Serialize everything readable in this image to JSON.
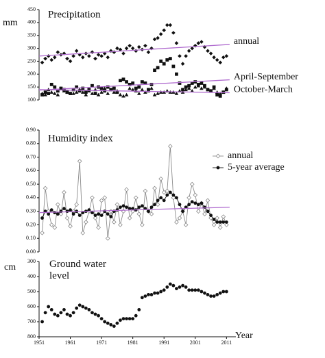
{
  "chart_data": [
    {
      "type": "scatter",
      "title": "Precipitation",
      "y_label": "mm",
      "xlim": [
        1951,
        2014
      ],
      "ylim": [
        100,
        450
      ],
      "yticks": [
        100,
        150,
        200,
        250,
        300,
        350,
        400,
        450
      ],
      "x": [
        1952,
        1953,
        1954,
        1955,
        1956,
        1957,
        1958,
        1959,
        1960,
        1961,
        1962,
        1963,
        1964,
        1965,
        1966,
        1967,
        1968,
        1969,
        1970,
        1971,
        1972,
        1973,
        1974,
        1975,
        1976,
        1977,
        1978,
        1979,
        1980,
        1981,
        1982,
        1983,
        1984,
        1985,
        1986,
        1987,
        1988,
        1989,
        1990,
        1991,
        1992,
        1993,
        1994,
        1995,
        1996,
        1997,
        1998,
        1999,
        2000,
        2001,
        2002,
        2003,
        2004,
        2005,
        2006,
        2007,
        2008,
        2009,
        2010,
        2011
      ],
      "series": [
        {
          "name": "annual",
          "color": "#111111",
          "marker": "diamond",
          "values": [
            245,
            260,
            270,
            255,
            265,
            285,
            275,
            280,
            260,
            250,
            270,
            290,
            275,
            265,
            280,
            270,
            285,
            260,
            275,
            270,
            280,
            265,
            290,
            285,
            300,
            295,
            280,
            300,
            310,
            300,
            290,
            305,
            295,
            310,
            285,
            300,
            335,
            340,
            355,
            370,
            390,
            390,
            360,
            320,
            270,
            240,
            270,
            290,
            300,
            310,
            320,
            325,
            305,
            290,
            280,
            265,
            255,
            245,
            265,
            270
          ],
          "trend": {
            "x": [
              1951,
              2012
            ],
            "values": [
              270,
              315
            ],
            "color": "#b06ccf"
          }
        },
        {
          "name": "April-September",
          "color": "#111111",
          "marker": "square",
          "values": [
            120,
            130,
            125,
            160,
            150,
            135,
            145,
            140,
            130,
            125,
            140,
            150,
            135,
            145,
            130,
            140,
            155,
            125,
            150,
            145,
            135,
            150,
            140,
            145,
            130,
            175,
            180,
            170,
            160,
            165,
            145,
            150,
            170,
            165,
            140,
            160,
            215,
            225,
            250,
            240,
            255,
            260,
            230,
            200,
            165,
            140,
            150,
            155,
            165,
            170,
            160,
            165,
            155,
            140,
            135,
            150,
            120,
            115,
            130,
            140
          ],
          "trend": {
            "x": [
              1951,
              2012
            ],
            "values": [
              138,
              178
            ],
            "color": "#b06ccf"
          }
        },
        {
          "name": "October-March",
          "color": "#111111",
          "marker": "triangle",
          "values": [
            125,
            120,
            140,
            130,
            125,
            120,
            145,
            135,
            130,
            125,
            125,
            130,
            140,
            130,
            120,
            135,
            125,
            140,
            120,
            130,
            145,
            125,
            140,
            130,
            135,
            120,
            115,
            120,
            145,
            140,
            135,
            125,
            140,
            130,
            135,
            145,
            120,
            125,
            130,
            130,
            135,
            130,
            130,
            125,
            135,
            130,
            140,
            145,
            135,
            150,
            155,
            145,
            150,
            140,
            135,
            145,
            130,
            125,
            130,
            145
          ],
          "trend": {
            "x": [
              1951,
              2012
            ],
            "values": [
              140,
              128
            ],
            "color": "#b06ccf"
          }
        }
      ]
    },
    {
      "type": "line",
      "title": "Humidity index",
      "legend": "upper right",
      "xlim": [
        1951,
        2014
      ],
      "ylim": [
        0,
        0.9
      ],
      "yticks": [
        {
          "value": 0,
          "label": "0.00"
        },
        {
          "value": 0.1,
          "label": "0.10"
        },
        {
          "value": 0.2,
          "label": "0.20"
        },
        {
          "value": 0.3,
          "label": "0.30"
        },
        {
          "value": 0.4,
          "label": "0.40"
        },
        {
          "value": 0.5,
          "label": "0.50"
        },
        {
          "value": 0.6,
          "label": "0.60"
        },
        {
          "value": 0.7,
          "label": "0.70"
        },
        {
          "value": 0.8,
          "label": "0.80"
        },
        {
          "value": 0.9,
          "label": "0.90"
        }
      ],
      "x": [
        1952,
        1953,
        1954,
        1955,
        1956,
        1957,
        1958,
        1959,
        1960,
        1961,
        1962,
        1963,
        1964,
        1965,
        1966,
        1967,
        1968,
        1969,
        1970,
        1971,
        1972,
        1973,
        1974,
        1975,
        1976,
        1977,
        1978,
        1979,
        1980,
        1981,
        1982,
        1983,
        1984,
        1985,
        1986,
        1987,
        1988,
        1989,
        1990,
        1991,
        1992,
        1993,
        1994,
        1995,
        1996,
        1997,
        1998,
        1999,
        2000,
        2001,
        2002,
        2003,
        2004,
        2005,
        2006,
        2007,
        2008,
        2009,
        2010,
        2011
      ],
      "series": [
        {
          "name": "annual",
          "color": "#8a8a8a",
          "marker": "open-diamond",
          "values": [
            0.14,
            0.47,
            0.3,
            0.2,
            0.18,
            0.35,
            0.28,
            0.44,
            0.25,
            0.19,
            0.3,
            0.35,
            0.67,
            0.14,
            0.22,
            0.3,
            0.4,
            0.25,
            0.18,
            0.38,
            0.4,
            0.1,
            0.3,
            0.22,
            0.35,
            0.2,
            0.3,
            0.46,
            0.25,
            0.3,
            0.4,
            0.28,
            0.2,
            0.45,
            0.3,
            0.28,
            0.47,
            0.35,
            0.54,
            0.44,
            0.45,
            0.78,
            0.4,
            0.22,
            0.25,
            0.3,
            0.2,
            0.4,
            0.5,
            0.42,
            0.3,
            0.36,
            0.28,
            0.38,
            0.25,
            0.2,
            0.25,
            0.18,
            0.26,
            0.2
          ]
        },
        {
          "name": "5-year average",
          "color": "#111111",
          "marker": "circle",
          "values": [
            0.25,
            0.3,
            0.28,
            0.31,
            0.29,
            0.28,
            0.3,
            0.32,
            0.3,
            0.31,
            0.28,
            0.3,
            0.27,
            0.29,
            0.3,
            0.31,
            0.29,
            0.27,
            0.28,
            0.27,
            0.3,
            0.28,
            0.26,
            0.3,
            0.31,
            0.33,
            0.34,
            0.33,
            0.32,
            0.32,
            0.31,
            0.33,
            0.34,
            0.32,
            0.3,
            0.33,
            0.35,
            0.38,
            0.4,
            0.38,
            0.42,
            0.44,
            0.42,
            0.4,
            0.35,
            0.3,
            0.33,
            0.35,
            0.37,
            0.36,
            0.35,
            0.36,
            0.33,
            0.3,
            0.27,
            0.24,
            0.22,
            0.22,
            0.22,
            0.22
          ]
        }
      ],
      "trend": {
        "x": [
          1951,
          2012
        ],
        "values": [
          0.29,
          0.33
        ],
        "color": "#b06ccf"
      }
    },
    {
      "type": "scatter",
      "title": "Ground water level",
      "y_label": "cm",
      "x_label": "Year",
      "xlim": [
        1951,
        2014
      ],
      "ylim": [
        800,
        300
      ],
      "yticks": [
        300,
        400,
        500,
        600,
        700,
        800
      ],
      "xticks": [
        1951,
        1961,
        1971,
        1981,
        1991,
        2001,
        2011
      ],
      "x": [
        1952,
        1953,
        1954,
        1955,
        1956,
        1957,
        1958,
        1959,
        1960,
        1961,
        1962,
        1963,
        1964,
        1965,
        1966,
        1967,
        1968,
        1969,
        1970,
        1971,
        1972,
        1973,
        1974,
        1975,
        1976,
        1977,
        1978,
        1979,
        1980,
        1981,
        1982,
        1983,
        1984,
        1985,
        1986,
        1987,
        1988,
        1989,
        1990,
        1991,
        1992,
        1993,
        1994,
        1995,
        1996,
        1997,
        1998,
        1999,
        2000,
        2001,
        2002,
        2003,
        2004,
        2005,
        2006,
        2007,
        2008,
        2009,
        2010,
        2011
      ],
      "series": [
        {
          "color": "#111111",
          "marker": "circle",
          "values": [
            700,
            640,
            600,
            620,
            650,
            660,
            640,
            620,
            650,
            660,
            640,
            610,
            590,
            600,
            610,
            620,
            640,
            650,
            660,
            680,
            700,
            710,
            720,
            730,
            710,
            690,
            680,
            680,
            680,
            680,
            660,
            620,
            540,
            530,
            520,
            520,
            510,
            510,
            500,
            490,
            470,
            450,
            460,
            480,
            470,
            460,
            470,
            490,
            490,
            490,
            490,
            500,
            510,
            520,
            530,
            530,
            520,
            510,
            500,
            500
          ]
        }
      ]
    }
  ]
}
